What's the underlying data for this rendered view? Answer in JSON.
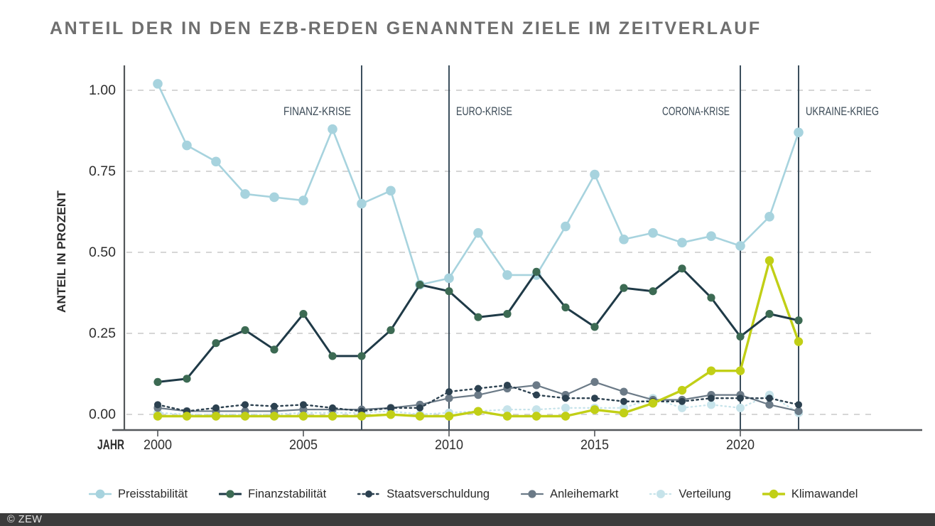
{
  "title": "ANTEIL DER IN DEN EZB-REDEN GENANNTEN ZIELE IM ZEITVERLAUF",
  "footer": {
    "copyright": "© ZEW"
  },
  "colors": {
    "title_text": "#6f6f6f",
    "axis": "#53575a",
    "grid": "#c9c9c9",
    "tick_text": "#2e2e2e",
    "event_line": "#3c4f5d",
    "event_text": "#3d4c58",
    "footer_bg": "#3c3c3c",
    "footer_text": "#e3e3e3"
  },
  "chart_data": {
    "type": "line",
    "title": "ANTEIL DER IN DEN EZB-REDEN GENANNTEN ZIELE IM ZEITVERLAUF",
    "xlabel": "JAHR",
    "ylabel": "ANTEIL IN PROZENT",
    "ylim": [
      0,
      1.05
    ],
    "grid": "horizontal-dashed",
    "legend_position": "bottom",
    "yticks": [
      0.0,
      0.25,
      0.5,
      0.75,
      1.0
    ],
    "ytick_labels": [
      "0.00",
      "0.25",
      "0.50",
      "0.75",
      "1.00"
    ],
    "xticks": [
      2000,
      2005,
      2010,
      2015,
      2020
    ],
    "years": [
      2000,
      2001,
      2002,
      2003,
      2004,
      2005,
      2006,
      2007,
      2008,
      2009,
      2010,
      2011,
      2012,
      2013,
      2014,
      2015,
      2016,
      2017,
      2018,
      2019,
      2020,
      2021,
      2022
    ],
    "events": [
      {
        "label": "FINANZ-KRISE",
        "year": 2007,
        "label_side": "left"
      },
      {
        "label": "EURO-KRISE",
        "year": 2010,
        "label_side": "right"
      },
      {
        "label": "CORONA-KRISE",
        "year": 2020,
        "label_side": "left"
      },
      {
        "label": "UKRAINE-KRIEG",
        "year": 2022,
        "label_side": "right"
      }
    ],
    "series": [
      {
        "name": "Preisstabilität",
        "style": "solid",
        "color": "#a7d3de",
        "dot_color": "#a7d3de",
        "line_width": 2.6,
        "dot_r": 6.8,
        "values": [
          1.02,
          0.83,
          0.78,
          0.68,
          0.67,
          0.66,
          0.88,
          0.65,
          0.69,
          0.4,
          0.42,
          0.56,
          0.43,
          0.43,
          0.58,
          0.74,
          0.54,
          0.56,
          0.53,
          0.55,
          0.52,
          0.61,
          0.87
        ]
      },
      {
        "name": "Finanzstabilität",
        "style": "solid",
        "color": "#1f3a47",
        "dot_color": "#3c6a53",
        "line_width": 3.0,
        "dot_r": 5.6,
        "values": [
          0.1,
          0.11,
          0.22,
          0.26,
          0.2,
          0.31,
          0.18,
          0.18,
          0.26,
          0.4,
          0.38,
          0.3,
          0.31,
          0.44,
          0.33,
          0.27,
          0.39,
          0.38,
          0.45,
          0.36,
          0.24,
          0.31,
          0.29
        ]
      },
      {
        "name": "Staatsverschuldung",
        "style": "dashed",
        "color": "#2c4150",
        "dot_color": "#2c4150",
        "line_width": 2.4,
        "dot_r": 5.0,
        "values": [
          0.03,
          0.01,
          0.02,
          0.03,
          0.025,
          0.03,
          0.02,
          0.01,
          0.02,
          0.02,
          0.07,
          0.08,
          0.09,
          0.06,
          0.05,
          0.05,
          0.04,
          0.04,
          0.04,
          0.05,
          0.05,
          0.05,
          0.03
        ]
      },
      {
        "name": "Anleihemarkt",
        "style": "solid",
        "color": "#6b7a87",
        "dot_color": "#6b7a87",
        "line_width": 2.2,
        "dot_r": 5.6,
        "values": [
          0.02,
          0.01,
          0.01,
          0.01,
          0.01,
          0.015,
          0.015,
          0.015,
          0.02,
          0.03,
          0.05,
          0.06,
          0.08,
          0.09,
          0.06,
          0.1,
          0.07,
          0.045,
          0.045,
          0.06,
          0.06,
          0.03,
          0.01
        ]
      },
      {
        "name": "Verteilung",
        "style": "dotted",
        "color": "#c6e3ea",
        "dot_color": "#c6e3ea",
        "line_width": 2.2,
        "dot_r": 6.0,
        "values": [
          0.005,
          0.0,
          0.0,
          0.0,
          0.0,
          0.005,
          0.005,
          0.005,
          0.01,
          0.0,
          0.005,
          0.01,
          0.015,
          0.015,
          0.02,
          0.02,
          0.02,
          0.05,
          0.02,
          0.03,
          0.02,
          0.06,
          0.005
        ]
      },
      {
        "name": "Klimawandel",
        "style": "solid",
        "color": "#c1cf16",
        "dot_color": "#c1cf16",
        "line_width": 3.4,
        "dot_r": 6.2,
        "values": [
          0.0,
          0.0,
          0.0,
          0.0,
          0.0,
          0.0,
          0.0,
          0.0,
          0.005,
          0.0,
          0.0,
          0.015,
          0.0,
          0.0,
          0.0,
          0.02,
          0.01,
          0.04,
          0.08,
          0.14,
          0.14,
          0.48,
          0.23
        ]
      }
    ]
  }
}
